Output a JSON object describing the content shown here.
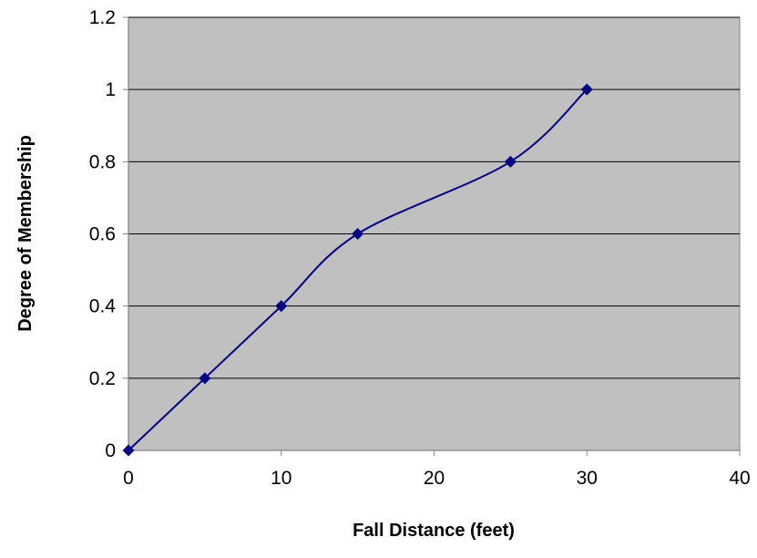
{
  "chart_data": {
    "type": "line",
    "title": "",
    "xlabel": "Fall Distance (feet)",
    "ylabel": "Degree of Membership",
    "xlim": [
      0,
      40
    ],
    "ylim": [
      0,
      1.2
    ],
    "x_ticks": [
      0,
      10,
      20,
      30,
      40
    ],
    "y_ticks": [
      0,
      0.2,
      0.4,
      0.6,
      0.8,
      1,
      1.2
    ],
    "x_tick_labels": [
      "0",
      "10",
      "20",
      "30",
      "40"
    ],
    "y_tick_labels": [
      "0",
      "0.2",
      "0.4",
      "0.6",
      "0.8",
      "1",
      "1.2"
    ],
    "grid": "horizontal",
    "legend": "none",
    "smooth": true,
    "marker": "diamond",
    "colors": {
      "plot_background": "#c0c0c0",
      "line": "#000080",
      "marker": "#000080",
      "gridline": "#000000",
      "axis": "#808080"
    },
    "series": [
      {
        "x": [
          0,
          5,
          10,
          15,
          25,
          30
        ],
        "y": [
          0,
          0.2,
          0.4,
          0.6,
          0.8,
          1
        ]
      }
    ]
  }
}
